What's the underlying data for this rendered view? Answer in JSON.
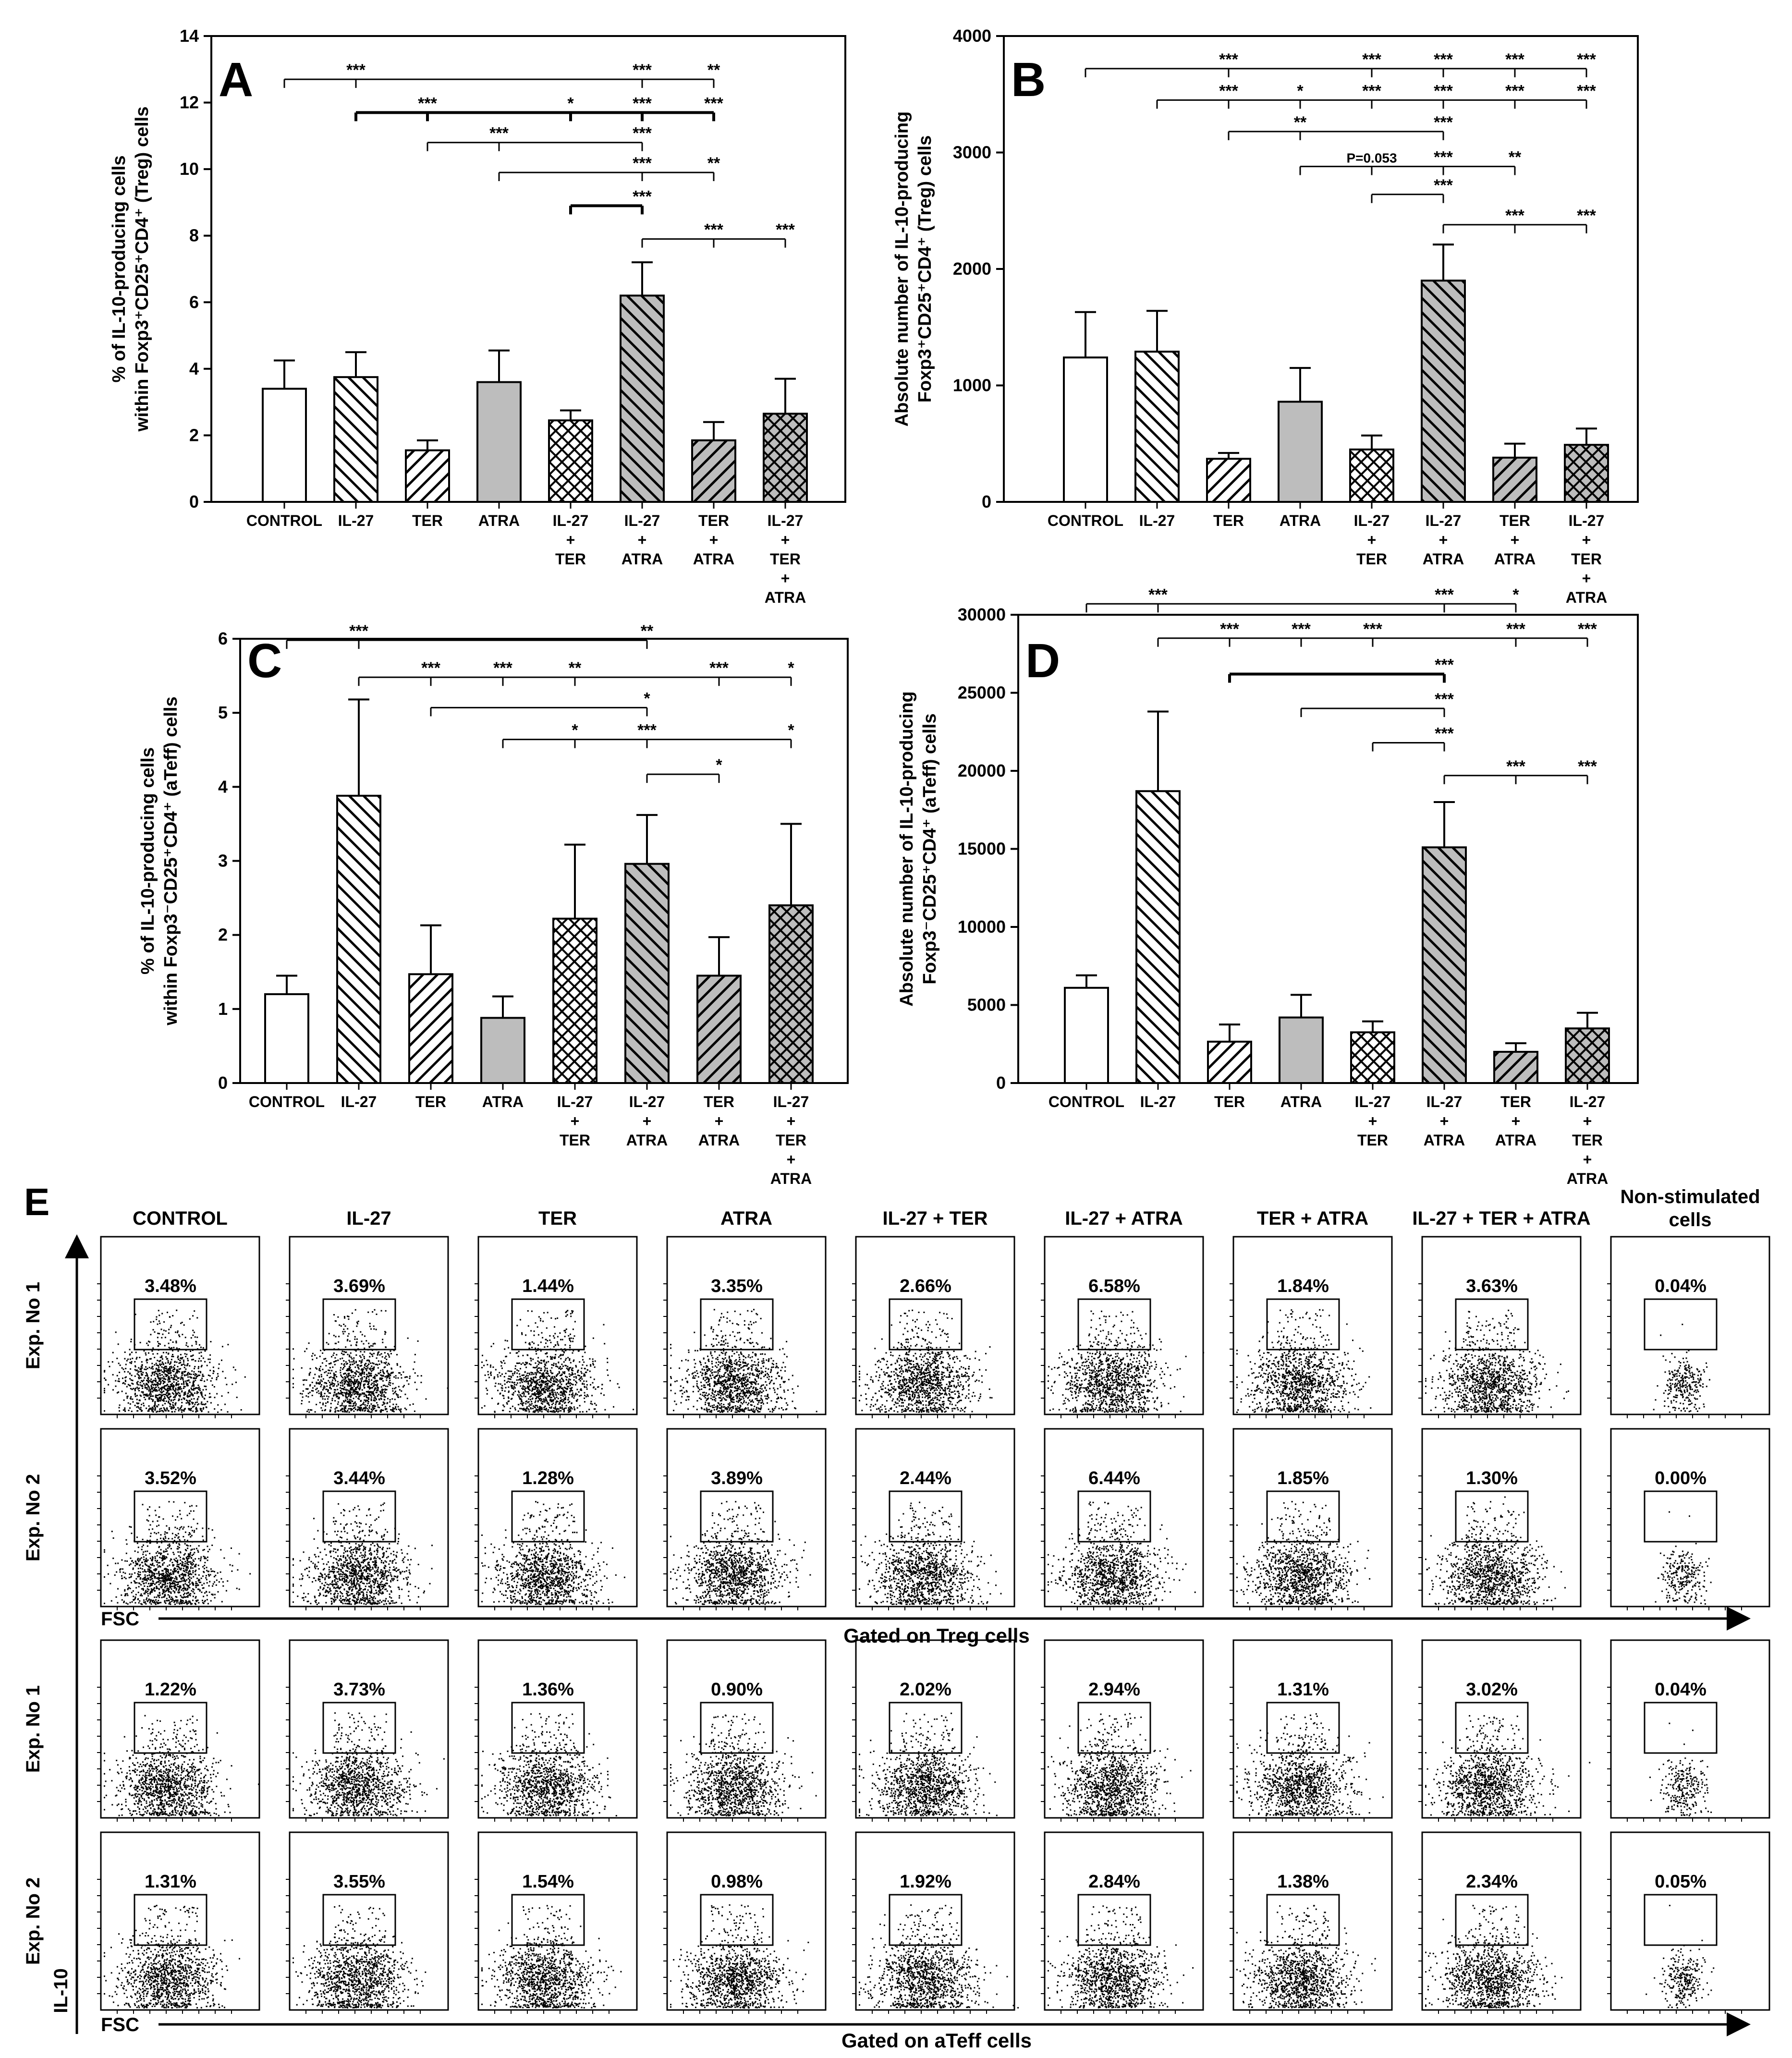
{
  "figure": {
    "panel_e_label": "E",
    "column_titles": [
      "CONTROL",
      "IL-27",
      "TER",
      "ATRA",
      "IL-27 + TER",
      "IL-27 + ATRA",
      "TER + ATRA",
      "IL-27 + TER + ATRA",
      "Non-stimulated",
      "cells"
    ],
    "treg_section": {
      "row_labels": [
        "Exp. No 1",
        "Exp. No 2"
      ],
      "gate_label": "Gated on Treg cells",
      "x_axis_label": "FSC",
      "percentages": [
        [
          "3.48%",
          "3.69%",
          "1.44%",
          "3.35%",
          "2.66%",
          "6.58%",
          "1.84%",
          "3.63%",
          "0.04%"
        ],
        [
          "3.52%",
          "3.44%",
          "1.28%",
          "3.89%",
          "2.44%",
          "6.44%",
          "1.85%",
          "1.30%",
          "0.00%"
        ]
      ]
    },
    "ateff_section": {
      "row_labels": [
        "Exp. No 1",
        "Exp. No 2"
      ],
      "gate_label": "Gated on aTeff cells",
      "x_axis_label": "FSC",
      "y_axis_label": "IL-10",
      "percentages": [
        [
          "1.22%",
          "3.73%",
          "1.36%",
          "0.90%",
          "2.02%",
          "2.94%",
          "1.31%",
          "3.02%",
          "0.04%"
        ],
        [
          "1.31%",
          "3.55%",
          "1.54%",
          "0.98%",
          "1.92%",
          "2.84%",
          "1.38%",
          "2.34%",
          "0.05%"
        ]
      ]
    }
  },
  "chart_data": [
    {
      "panel": "A",
      "type": "bar",
      "ylabel_lines": [
        "% of IL-10-producing cells",
        "within Foxp3⁺CD25⁺CD4⁺ (Treg) cells"
      ],
      "ylim": [
        0,
        14
      ],
      "yticks": [
        0,
        2,
        4,
        6,
        8,
        10,
        12,
        14
      ],
      "categories": [
        [
          "CONTROL"
        ],
        [
          "IL-27"
        ],
        [
          "TER"
        ],
        [
          "ATRA"
        ],
        [
          "IL-27",
          "+",
          "TER"
        ],
        [
          "IL-27",
          "+",
          "ATRA"
        ],
        [
          "TER",
          "+",
          "ATRA"
        ],
        [
          "IL-27",
          "+",
          "TER",
          "+",
          "ATRA"
        ]
      ],
      "values": [
        3.4,
        3.75,
        1.55,
        3.6,
        2.45,
        6.2,
        1.85,
        2.65
      ],
      "errors": [
        0.85,
        0.75,
        0.3,
        0.95,
        0.3,
        1.0,
        0.55,
        1.05
      ],
      "patterns": [
        "white",
        "diag-down",
        "diag-up",
        "gray",
        "cross",
        "gray-diag",
        "gray-diag-up",
        "gray-cross"
      ],
      "brackets": [
        {
          "from": 0,
          "to": 6,
          "level": 12.7,
          "thick": false,
          "stars": [
            {
              "at": 1,
              "t": "***"
            },
            {
              "at": 5,
              "t": "***"
            },
            {
              "at": 6,
              "t": "**"
            }
          ]
        },
        {
          "from": 1,
          "to": 6,
          "level": 11.7,
          "thick": true,
          "stars": [
            {
              "at": 2,
              "t": "***"
            },
            {
              "at": 4,
              "t": "*"
            },
            {
              "at": 5,
              "t": "***"
            },
            {
              "at": 6,
              "t": "***"
            }
          ]
        },
        {
          "from": 2,
          "to": 5,
          "level": 10.8,
          "thick": false,
          "stars": [
            {
              "at": 3,
              "t": "***"
            },
            {
              "at": 5,
              "t": "***"
            }
          ]
        },
        {
          "from": 3,
          "to": 6,
          "level": 9.9,
          "thick": false,
          "stars": [
            {
              "at": 5,
              "t": "***"
            },
            {
              "at": 6,
              "t": "**"
            }
          ]
        },
        {
          "from": 4,
          "to": 5,
          "level": 8.9,
          "thick": true,
          "stars": [
            {
              "at": 5,
              "t": "***"
            }
          ]
        },
        {
          "from": 5,
          "to": 7,
          "level": 7.9,
          "thick": false,
          "stars": [
            {
              "at": 6,
              "t": "***"
            },
            {
              "at": 7,
              "t": "***"
            }
          ]
        }
      ]
    },
    {
      "panel": "B",
      "type": "bar",
      "ylabel_lines": [
        "Absolute number of IL-10-producing",
        "Foxp3⁺CD25⁺CD4⁺ (Treg) cells"
      ],
      "ylim": [
        0,
        4000
      ],
      "yticks": [
        0,
        1000,
        2000,
        3000,
        4000
      ],
      "categories": [
        [
          "CONTROL"
        ],
        [
          "IL-27"
        ],
        [
          "TER"
        ],
        [
          "ATRA"
        ],
        [
          "IL-27",
          "+",
          "TER"
        ],
        [
          "IL-27",
          "+",
          "ATRA"
        ],
        [
          "TER",
          "+",
          "ATRA"
        ],
        [
          "IL-27",
          "+",
          "TER",
          "+",
          "ATRA"
        ]
      ],
      "values": [
        1240,
        1290,
        370,
        860,
        450,
        1900,
        380,
        490
      ],
      "errors": [
        390,
        350,
        50,
        290,
        120,
        310,
        120,
        140
      ],
      "patterns": [
        "white",
        "diag-down",
        "diag-up",
        "gray",
        "cross",
        "gray-diag",
        "gray-diag-up",
        "gray-cross"
      ],
      "brackets": [
        {
          "from": 0,
          "to": 7,
          "level": 3720,
          "thick": false,
          "stars": [
            {
              "at": 2,
              "t": "***"
            },
            {
              "at": 4,
              "t": "***"
            },
            {
              "at": 5,
              "t": "***"
            },
            {
              "at": 6,
              "t": "***"
            },
            {
              "at": 7,
              "t": "***"
            }
          ]
        },
        {
          "from": 1,
          "to": 7,
          "level": 3450,
          "thick": false,
          "stars": [
            {
              "at": 2,
              "t": "***"
            },
            {
              "at": 3,
              "t": "*"
            },
            {
              "at": 4,
              "t": "***"
            },
            {
              "at": 5,
              "t": "***"
            },
            {
              "at": 6,
              "t": "***"
            },
            {
              "at": 7,
              "t": "***"
            }
          ]
        },
        {
          "from": 2,
          "to": 5,
          "level": 3180,
          "thick": false,
          "stars": [
            {
              "at": 3,
              "t": "**"
            },
            {
              "at": 5,
              "t": "***"
            }
          ]
        },
        {
          "from": 3,
          "to": 6,
          "level": 2880,
          "thick": false,
          "stars": [
            {
              "at": 4,
              "t": "P=0.053"
            },
            {
              "at": 5,
              "t": "***"
            },
            {
              "at": 6,
              "t": "**"
            }
          ]
        },
        {
          "from": 4,
          "to": 5,
          "level": 2640,
          "thick": false,
          "stars": [
            {
              "at": 5,
              "t": "***"
            }
          ]
        },
        {
          "from": 5,
          "to": 7,
          "level": 2380,
          "thick": false,
          "stars": [
            {
              "at": 6,
              "t": "***"
            },
            {
              "at": 7,
              "t": "***"
            }
          ]
        }
      ]
    },
    {
      "panel": "C",
      "type": "bar",
      "ylabel_lines": [
        "% of IL-10-producing cells",
        "within Foxp3⁻CD25⁺CD4⁺ (aTeff) cells"
      ],
      "ylim": [
        0,
        6
      ],
      "yticks": [
        0,
        1,
        2,
        3,
        4,
        5,
        6
      ],
      "categories": [
        [
          "CONTROL"
        ],
        [
          "IL-27"
        ],
        [
          "TER"
        ],
        [
          "ATRA"
        ],
        [
          "IL-27",
          "+",
          "TER"
        ],
        [
          "IL-27",
          "+",
          "ATRA"
        ],
        [
          "TER",
          "+",
          "ATRA"
        ],
        [
          "IL-27",
          "+",
          "TER",
          "+",
          "ATRA"
        ]
      ],
      "values": [
        1.2,
        3.88,
        1.47,
        0.88,
        2.22,
        2.96,
        1.45,
        2.4
      ],
      "errors": [
        0.25,
        1.3,
        0.66,
        0.29,
        1.0,
        0.66,
        0.52,
        1.1
      ],
      "patterns": [
        "white",
        "diag-down",
        "diag-up",
        "gray",
        "cross",
        "gray-diag",
        "gray-diag-up",
        "gray-cross"
      ],
      "brackets": [
        {
          "from": 0,
          "to": 5,
          "level": 5.98,
          "thick": false,
          "stars": [
            {
              "at": 1,
              "t": "***"
            },
            {
              "at": 5,
              "t": "**"
            }
          ]
        },
        {
          "from": 1,
          "to": 7,
          "level": 5.48,
          "thick": false,
          "stars": [
            {
              "at": 2,
              "t": "***"
            },
            {
              "at": 3,
              "t": "***"
            },
            {
              "at": 4,
              "t": "**"
            },
            {
              "at": 6,
              "t": "***"
            },
            {
              "at": 7,
              "t": "*"
            }
          ]
        },
        {
          "from": 2,
          "to": 5,
          "level": 5.07,
          "thick": false,
          "stars": [
            {
              "at": 5,
              "t": "*"
            }
          ]
        },
        {
          "from": 3,
          "to": 7,
          "level": 4.64,
          "thick": false,
          "stars": [
            {
              "at": 4,
              "t": "*"
            },
            {
              "at": 5,
              "t": "***"
            },
            {
              "at": 7,
              "t": "*"
            }
          ]
        },
        {
          "from": 5,
          "to": 6,
          "level": 4.17,
          "thick": false,
          "stars": [
            {
              "at": 6,
              "t": "*"
            }
          ]
        }
      ]
    },
    {
      "panel": "D",
      "type": "bar",
      "ylabel_lines": [
        "Absolute number of IL-10-producing",
        "Foxp3⁻CD25⁺CD4⁺ (aTeff) cells"
      ],
      "ylim": [
        0,
        30000
      ],
      "yticks": [
        0,
        5000,
        10000,
        15000,
        20000,
        25000,
        30000
      ],
      "categories": [
        [
          "CONTROL"
        ],
        [
          "IL-27"
        ],
        [
          "TER"
        ],
        [
          "ATRA"
        ],
        [
          "IL-27",
          "+",
          "TER"
        ],
        [
          "IL-27",
          "+",
          "ATRA"
        ],
        [
          "TER",
          "+",
          "ATRA"
        ],
        [
          "IL-27",
          "+",
          "TER",
          "+",
          "ATRA"
        ]
      ],
      "values": [
        6100,
        18700,
        2650,
        4200,
        3250,
        15100,
        2000,
        3500
      ],
      "errors": [
        800,
        5100,
        1100,
        1450,
        700,
        2900,
        550,
        1000
      ],
      "patterns": [
        "white",
        "diag-down",
        "diag-up",
        "gray",
        "cross",
        "gray-diag",
        "gray-diag-up",
        "gray-cross"
      ],
      "brackets": [
        {
          "from": 0,
          "to": 6,
          "level": 30700,
          "thick": false,
          "stars": [
            {
              "at": 1,
              "t": "***"
            },
            {
              "at": 5,
              "t": "***"
            },
            {
              "at": 6,
              "t": "*"
            }
          ]
        },
        {
          "from": 1,
          "to": 7,
          "level": 28500,
          "thick": false,
          "stars": [
            {
              "at": 2,
              "t": "***"
            },
            {
              "at": 3,
              "t": "***"
            },
            {
              "at": 4,
              "t": "***"
            },
            {
              "at": 6,
              "t": "***"
            },
            {
              "at": 7,
              "t": "***"
            }
          ]
        },
        {
          "from": 2,
          "to": 5,
          "level": 26200,
          "thick": true,
          "stars": [
            {
              "at": 5,
              "t": "***"
            }
          ]
        },
        {
          "from": 3,
          "to": 5,
          "level": 24000,
          "thick": false,
          "stars": [
            {
              "at": 5,
              "t": "***"
            }
          ]
        },
        {
          "from": 4,
          "to": 5,
          "level": 21800,
          "thick": false,
          "stars": [
            {
              "at": 5,
              "t": "***"
            }
          ]
        },
        {
          "from": 5,
          "to": 7,
          "level": 19700,
          "thick": false,
          "stars": [
            {
              "at": 6,
              "t": "***"
            },
            {
              "at": 7,
              "t": "***"
            }
          ]
        }
      ]
    }
  ]
}
